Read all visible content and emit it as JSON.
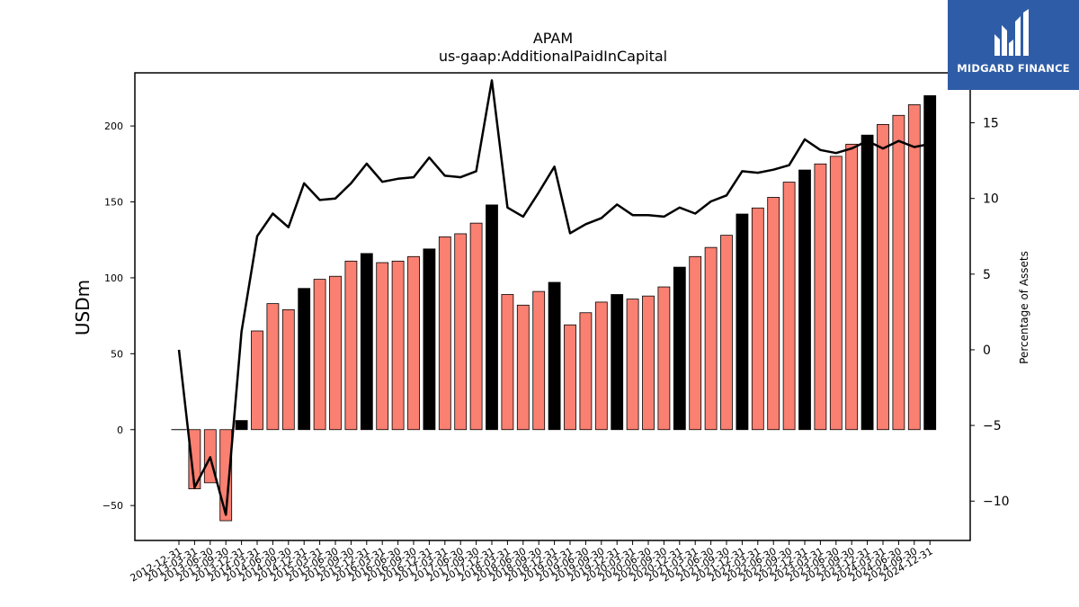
{
  "chart_data": {
    "type": "bar",
    "title": "APAM",
    "subtitle": "us-gaap:AdditionalPaidInCapital",
    "ylabel": "USDm",
    "y2label": "Percentage of Assets",
    "ylim": [
      -73,
      235
    ],
    "y2lim": [
      -12.6,
      18.3
    ],
    "yticks": [
      -50,
      0,
      50,
      100,
      150,
      200
    ],
    "y2ticks": [
      -10,
      -5,
      0,
      5,
      10,
      15
    ],
    "legend": "none",
    "grid": false,
    "categories": [
      "2012-12-31",
      "2013-03-31",
      "2013-06-30",
      "2013-09-30",
      "2013-12-31",
      "2014-03-31",
      "2014-06-30",
      "2014-09-30",
      "2014-12-31",
      "2015-03-31",
      "2015-06-30",
      "2015-09-30",
      "2015-12-31",
      "2016-03-31",
      "2016-06-30",
      "2016-09-30",
      "2016-12-31",
      "2017-03-31",
      "2017-06-30",
      "2017-09-30",
      "2017-12-31",
      "2018-03-31",
      "2018-06-30",
      "2018-09-30",
      "2018-12-31",
      "2019-03-31",
      "2019-06-30",
      "2019-09-30",
      "2019-12-31",
      "2020-03-31",
      "2020-06-30",
      "2020-09-30",
      "2020-12-31",
      "2021-03-31",
      "2021-06-30",
      "2021-09-30",
      "2021-12-31",
      "2022-03-31",
      "2022-06-30",
      "2022-09-30",
      "2022-12-31",
      "2023-03-31",
      "2023-06-30",
      "2023-09-30",
      "2023-12-31",
      "2024-03-31",
      "2024-06-30",
      "2024-09-30",
      "2024-12-31"
    ],
    "series": [
      {
        "type": "bar",
        "axis": "left",
        "values": [
          0,
          -39,
          -35,
          -60,
          6,
          65,
          83,
          79,
          93,
          99,
          101,
          111,
          116,
          110,
          111,
          114,
          119,
          127,
          129,
          136,
          148,
          89,
          82,
          91,
          97,
          69,
          77,
          84,
          89,
          86,
          88,
          94,
          107,
          114,
          120,
          128,
          142,
          146,
          153,
          163,
          171,
          175,
          180,
          188,
          194,
          201,
          207,
          214,
          220
        ],
        "colors": {
          "default": "#fa8072",
          "year_end": "#000000"
        }
      },
      {
        "type": "line",
        "axis": "right",
        "color": "#000000",
        "values": [
          0.0,
          -9.1,
          -7.1,
          -10.9,
          1.2,
          7.5,
          9.0,
          8.1,
          11.0,
          9.9,
          10.0,
          11.0,
          12.3,
          11.1,
          11.3,
          11.4,
          12.7,
          11.5,
          11.4,
          11.8,
          17.8,
          9.4,
          8.8,
          10.4,
          12.1,
          7.7,
          8.3,
          8.7,
          9.6,
          8.9,
          8.9,
          8.8,
          9.4,
          9.0,
          9.8,
          10.2,
          11.8,
          11.7,
          11.9,
          12.2,
          13.9,
          13.2,
          13.0,
          13.3,
          13.8,
          13.3,
          13.8,
          13.4,
          13.6
        ]
      }
    ]
  },
  "logo": {
    "text": "MIDGARD FINANCE",
    "color": "#2f5ca6"
  }
}
